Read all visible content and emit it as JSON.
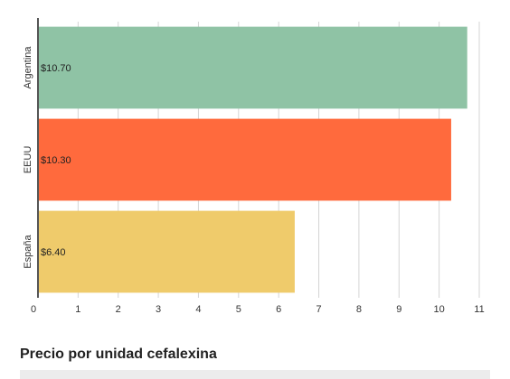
{
  "chart_data": {
    "type": "bar",
    "orientation": "horizontal",
    "categories": [
      "Argentina",
      "EEUU",
      "España"
    ],
    "values": [
      10.7,
      10.3,
      6.4
    ],
    "data_labels": [
      "$10.70",
      "$10.30",
      "$6.40"
    ],
    "colors": [
      "#8fc3a5",
      "#ff6a3d",
      "#efcb6b"
    ],
    "xlim": [
      0,
      11
    ],
    "x_ticks": [
      0,
      1,
      2,
      3,
      4,
      5,
      6,
      7,
      8,
      9,
      10,
      11
    ],
    "grid": true,
    "title": "",
    "xlabel": "",
    "ylabel": ""
  },
  "caption": "Precio por unidad cefalexina"
}
